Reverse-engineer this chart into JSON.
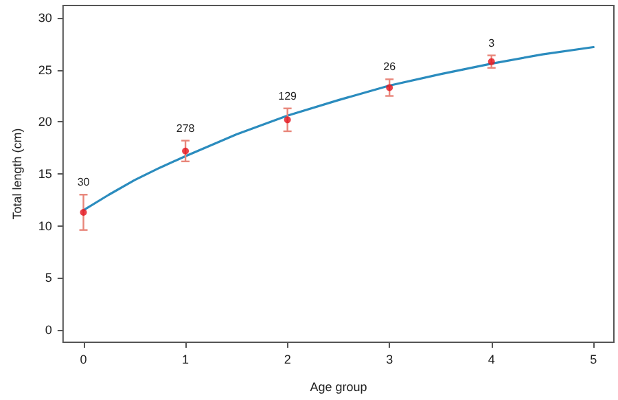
{
  "chart_data": {
    "type": "scatter",
    "xlabel": "Age group",
    "ylabel": "Total length (cm)",
    "xlim": [
      -0.2,
      5.2
    ],
    "xticks": [
      0,
      1,
      2,
      3,
      4,
      5
    ],
    "ylim": [
      -1.2,
      31.2
    ],
    "yticks": [
      0,
      5,
      10,
      15,
      20,
      25,
      30
    ],
    "grid": false,
    "marker": "circle",
    "series": [
      {
        "color": "#e3121b",
        "x": [
          0,
          1,
          2,
          3,
          4
        ],
        "values": [
          11.3,
          17.2,
          20.2,
          23.3,
          25.8
        ],
        "errors": [
          [
            9.6,
            13.0
          ],
          [
            16.2,
            18.2
          ],
          [
            19.1,
            21.3
          ],
          [
            22.5,
            24.1
          ],
          [
            25.2,
            26.4
          ]
        ]
      },
      {
        "type": "line",
        "color": "#2b8cbe",
        "marker": "none",
        "line_style": "solid",
        "x": [
          0,
          0.25,
          0.5,
          0.75,
          1,
          1.5,
          2,
          2.5,
          3,
          3.5,
          4,
          4.5,
          5
        ],
        "values": [
          11.5,
          13.0,
          14.4,
          15.6,
          16.7,
          18.8,
          20.6,
          22.1,
          23.5,
          24.6,
          25.6,
          26.5,
          27.2
        ]
      }
    ],
    "annotations": [
      "30",
      "278",
      "129",
      "26",
      "3"
    ]
  }
}
